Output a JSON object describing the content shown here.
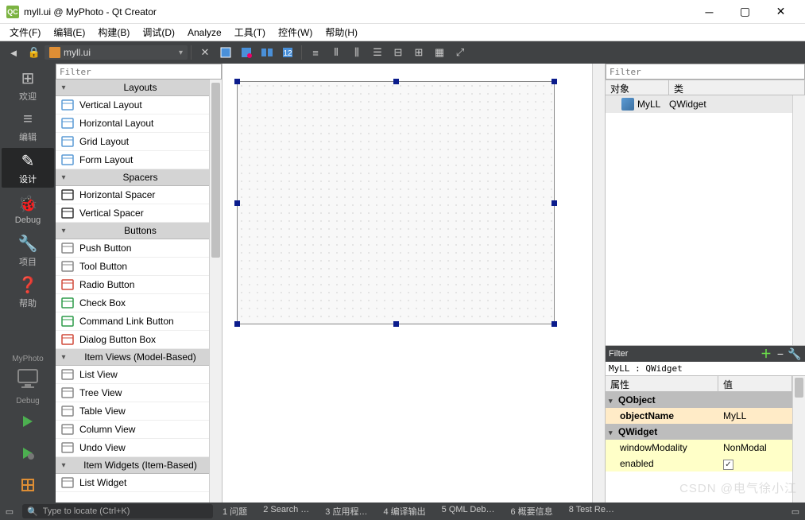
{
  "window": {
    "title": "myll.ui @ MyPhoto - Qt Creator",
    "logo_text": "QC"
  },
  "menubar": [
    "文件(F)",
    "编辑(E)",
    "构建(B)",
    "调试(D)",
    "Analyze",
    "工具(T)",
    "控件(W)",
    "帮助(H)"
  ],
  "open_file": "myll.ui",
  "modebar": {
    "items": [
      {
        "label": "欢迎",
        "icon": "⊞"
      },
      {
        "label": "编辑",
        "icon": "≡"
      },
      {
        "label": "设计",
        "icon": "✎",
        "active": true
      },
      {
        "label": "Debug",
        "icon": "🐞"
      },
      {
        "label": "项目",
        "icon": "🔧"
      },
      {
        "label": "帮助",
        "icon": "❓"
      }
    ],
    "project": "MyPhoto",
    "debug_label": "Debug"
  },
  "widgetbox": {
    "filter_placeholder": "Filter",
    "groups": [
      {
        "title": "Layouts",
        "items": [
          {
            "label": "Vertical Layout",
            "color": "#5b9bd5"
          },
          {
            "label": "Horizontal Layout",
            "color": "#5b9bd5"
          },
          {
            "label": "Grid Layout",
            "color": "#5b9bd5"
          },
          {
            "label": "Form Layout",
            "color": "#5b9bd5"
          }
        ]
      },
      {
        "title": "Spacers",
        "items": [
          {
            "label": "Horizontal Spacer",
            "color": "#333"
          },
          {
            "label": "Vertical Spacer",
            "color": "#333"
          }
        ]
      },
      {
        "title": "Buttons",
        "items": [
          {
            "label": "Push Button",
            "color": "#888"
          },
          {
            "label": "Tool Button",
            "color": "#888"
          },
          {
            "label": "Radio Button",
            "color": "#d04a3a"
          },
          {
            "label": "Check Box",
            "color": "#2e9c4a"
          },
          {
            "label": "Command Link Button",
            "color": "#2e9c4a"
          },
          {
            "label": "Dialog Button Box",
            "color": "#d04a3a"
          }
        ]
      },
      {
        "title": "Item Views (Model-Based)",
        "items": [
          {
            "label": "List View",
            "color": "#888"
          },
          {
            "label": "Tree View",
            "color": "#888"
          },
          {
            "label": "Table View",
            "color": "#888"
          },
          {
            "label": "Column View",
            "color": "#888"
          },
          {
            "label": "Undo View",
            "color": "#888"
          }
        ]
      },
      {
        "title": "Item Widgets (Item-Based)",
        "items": [
          {
            "label": "List Widget",
            "color": "#888"
          }
        ]
      }
    ]
  },
  "objectTree": {
    "filter_placeholder": "Filter",
    "col1": "对象",
    "col2": "类",
    "rows": [
      {
        "name": "MyLL",
        "class": "QWidget"
      }
    ]
  },
  "propEditor": {
    "filter_label": "Filter",
    "context": "MyLL : QWidget",
    "col1": "属性",
    "col2": "值",
    "rows": [
      {
        "type": "group",
        "name": "QObject",
        "bg": "#bdbdbd"
      },
      {
        "type": "prop",
        "name": "objectName",
        "value": "MyLL",
        "bg": "#ffebc7",
        "bold": true
      },
      {
        "type": "group",
        "name": "QWidget",
        "bg": "#bdbdbd"
      },
      {
        "type": "prop",
        "name": "windowModality",
        "value": "NonModal",
        "bg": "#ffffc8"
      },
      {
        "type": "prop",
        "name": "enabled",
        "value": "☑",
        "bg": "#ffffc8",
        "checkbox": true
      }
    ]
  },
  "statusbar": {
    "locator_placeholder": "Type to locate (Ctrl+K)",
    "items": [
      "1 问题",
      "2 Search …",
      "3 应用程…",
      "4 编译输出",
      "5 QML Deb…",
      "6 概要信息",
      "8 Test Re…"
    ]
  },
  "watermark": "CSDN @电气徐小江"
}
